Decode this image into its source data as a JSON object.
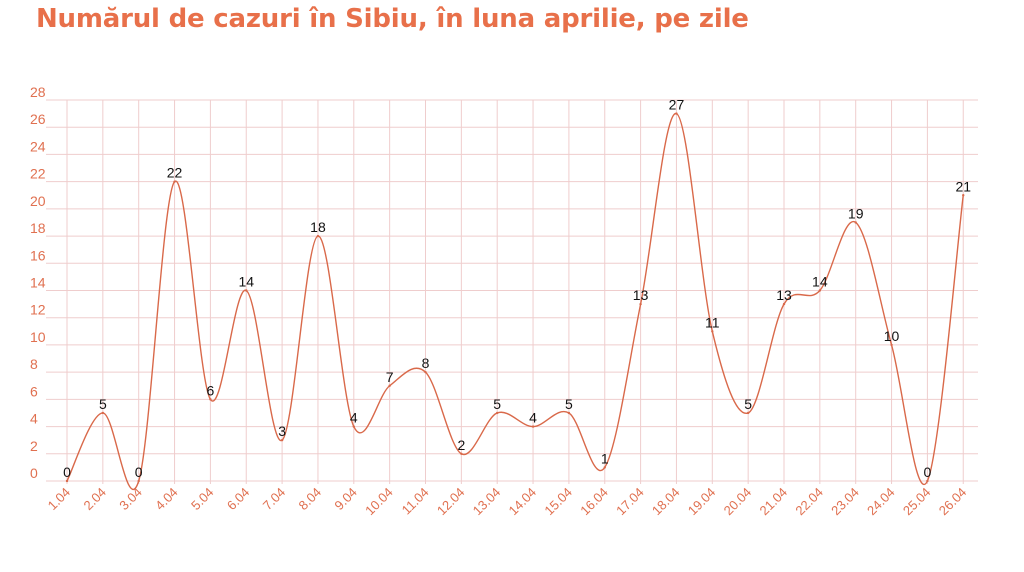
{
  "title": "Numărul de cazuri în Sibiu, în luna aprilie, pe zile",
  "colors": {
    "title": "#e8704a",
    "line": "#d9694a",
    "grid": "#efcdcd",
    "tick": "#e07050",
    "label": "#111111"
  },
  "chart_data": {
    "type": "line",
    "title": "Numărul de cazuri în Sibiu, în luna aprilie, pe zile",
    "xlabel": "",
    "ylabel": "",
    "ylim": [
      0,
      28
    ],
    "yticks": [
      0,
      2,
      4,
      6,
      8,
      10,
      12,
      14,
      16,
      18,
      20,
      22,
      24,
      26,
      28
    ],
    "grid": true,
    "smooth": true,
    "categories": [
      "1.04",
      "2.04",
      "3.04",
      "4.04",
      "5.04",
      "6.04",
      "7.04",
      "8.04",
      "9.04",
      "10.04",
      "11.04",
      "12.04",
      "13.04",
      "14.04",
      "15.04",
      "16.04",
      "17.04",
      "18.04",
      "19.04",
      "20.04",
      "21.04",
      "22.04",
      "23.04",
      "24.04",
      "25.04",
      "26.04"
    ],
    "values": [
      0,
      5,
      0,
      22,
      6,
      14,
      3,
      18,
      4,
      7,
      8,
      2,
      5,
      4,
      5,
      1,
      13,
      27,
      11,
      5,
      13,
      14,
      19,
      10,
      0,
      21
    ]
  }
}
